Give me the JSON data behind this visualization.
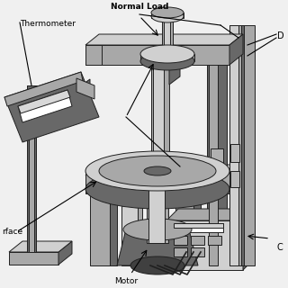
{
  "background_color": "#f0f0f0",
  "colors": {
    "white": "#ffffff",
    "light_gray": "#d0d0d0",
    "mid_gray": "#a8a8a8",
    "dark_gray": "#686868",
    "very_dark": "#404040",
    "outline": "#202020"
  },
  "labels": {
    "thermometer": "Thermometer",
    "normal_load": "Normal Load",
    "surface": "rface",
    "motor": "Motor",
    "D": "D",
    "C": "C"
  }
}
